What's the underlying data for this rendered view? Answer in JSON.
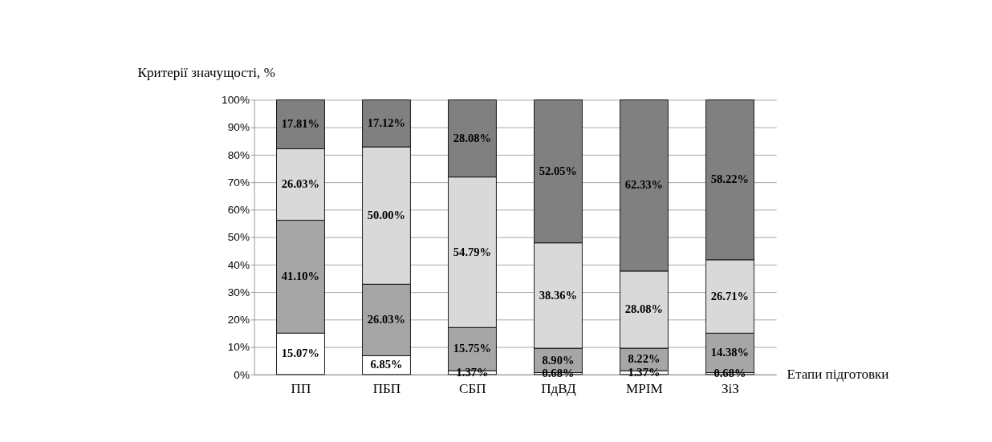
{
  "chart_data": {
    "type": "bar",
    "stacked": true,
    "categories": [
      "ПП",
      "ПБП",
      "СБП",
      "ПдВД",
      "МРІМ",
      "ЗіЗ"
    ],
    "ylabel": "Критерії значущості, %",
    "xlabel": "Етапи підготовки",
    "ylim": [
      0,
      100
    ],
    "yticks": [
      {
        "value": 0,
        "label": "0%"
      },
      {
        "value": 10,
        "label": "10%"
      },
      {
        "value": 20,
        "label": "20%"
      },
      {
        "value": 30,
        "label": "30%"
      },
      {
        "value": 40,
        "label": "40%"
      },
      {
        "value": 50,
        "label": "50%"
      },
      {
        "value": 60,
        "label": "60%"
      },
      {
        "value": 70,
        "label": "70%"
      },
      {
        "value": 80,
        "label": "80%"
      },
      {
        "value": 90,
        "label": "90%"
      },
      {
        "value": 100,
        "label": "100%"
      }
    ],
    "grid": "y",
    "series": [
      {
        "color": "#ffffff",
        "values": [
          15.07,
          6.85,
          1.37,
          0.68,
          1.37,
          0.68
        ],
        "value_labels": [
          "15.07%",
          "6.85%",
          "1.37%",
          "0.68%",
          "1.37%",
          "0.68%"
        ]
      },
      {
        "color": "#a6a6a6",
        "values": [
          41.1,
          26.03,
          15.75,
          8.9,
          8.22,
          14.38
        ],
        "value_labels": [
          "41.10%",
          "26.03%",
          "15.75%",
          "8.90%",
          "8.22%",
          "14.38%"
        ]
      },
      {
        "color": "#d9d9d9",
        "values": [
          26.03,
          50.0,
          54.79,
          38.36,
          28.08,
          26.71
        ],
        "value_labels": [
          "26.03%",
          "50.00%",
          "54.79%",
          "38.36%",
          "28.08%",
          "26.71%"
        ]
      },
      {
        "color": "#808080",
        "values": [
          17.81,
          17.12,
          28.08,
          52.05,
          62.33,
          58.22
        ],
        "value_labels": [
          "17.81%",
          "17.12%",
          "28.08%",
          "52.05%",
          "62.33%",
          "58.22%"
        ]
      }
    ]
  }
}
